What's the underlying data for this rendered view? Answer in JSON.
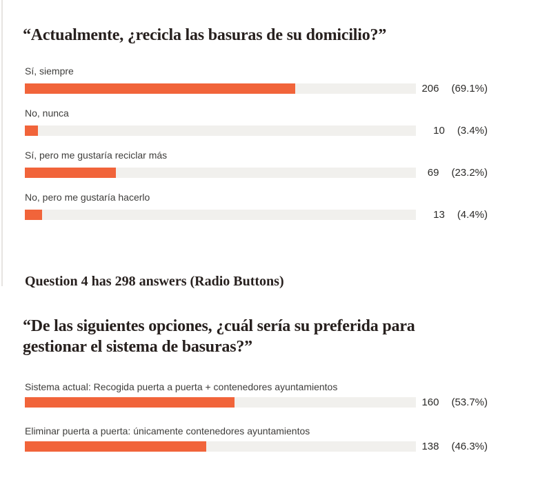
{
  "page": {
    "background": "#ffffff",
    "accent_color": "#f1643a",
    "track_color": "#f1f0ed",
    "heading_color": "#27201e",
    "label_color": "#3e3d3b"
  },
  "question4_meta": "Question 4 has 298 answers (Radio Buttons)",
  "chart_data": [
    {
      "type": "bar",
      "orientation": "horizontal",
      "title": "“Actualmente, ¿recicla las basuras de su domicilio?”",
      "categories": [
        "Sí, siempre",
        "No, nunca",
        "Sí, pero me gustaría reciclar más",
        "No, pero me gustaría hacerlo"
      ],
      "values": [
        206,
        10,
        69,
        13
      ],
      "percentages": [
        69.1,
        3.4,
        23.2,
        4.4
      ],
      "pct_labels": [
        "(69.1%)",
        "(3.4%)",
        "(23.2%)",
        "(4.4%)"
      ],
      "total_answers": 298,
      "xlim": [
        0,
        100
      ],
      "grid": false,
      "legend": false,
      "bar_color": "#f1643a",
      "track_color": "#f1f0ed"
    },
    {
      "type": "bar",
      "orientation": "horizontal",
      "title": "“De las siguientes opciones, ¿cuál sería su preferida para gestionar el sistema de basuras?”",
      "title_lines": [
        "“De las siguientes opciones, ¿cuál sería su preferida para",
        "gestionar el sistema de basuras?”"
      ],
      "meta": "Question 4 has 298 answers (Radio Buttons)",
      "categories": [
        "Sistema actual: Recogida puerta a puerta + contenedores ayuntamientos",
        "Eliminar puerta a puerta: únicamente contenedores ayuntamientos"
      ],
      "values": [
        160,
        138
      ],
      "percentages": [
        53.7,
        46.3
      ],
      "pct_labels": [
        "(53.7%)",
        "(46.3%)"
      ],
      "total_answers": 298,
      "xlim": [
        0,
        100
      ],
      "grid": false,
      "legend": false,
      "bar_color": "#f1643a",
      "track_color": "#f1f0ed"
    }
  ]
}
